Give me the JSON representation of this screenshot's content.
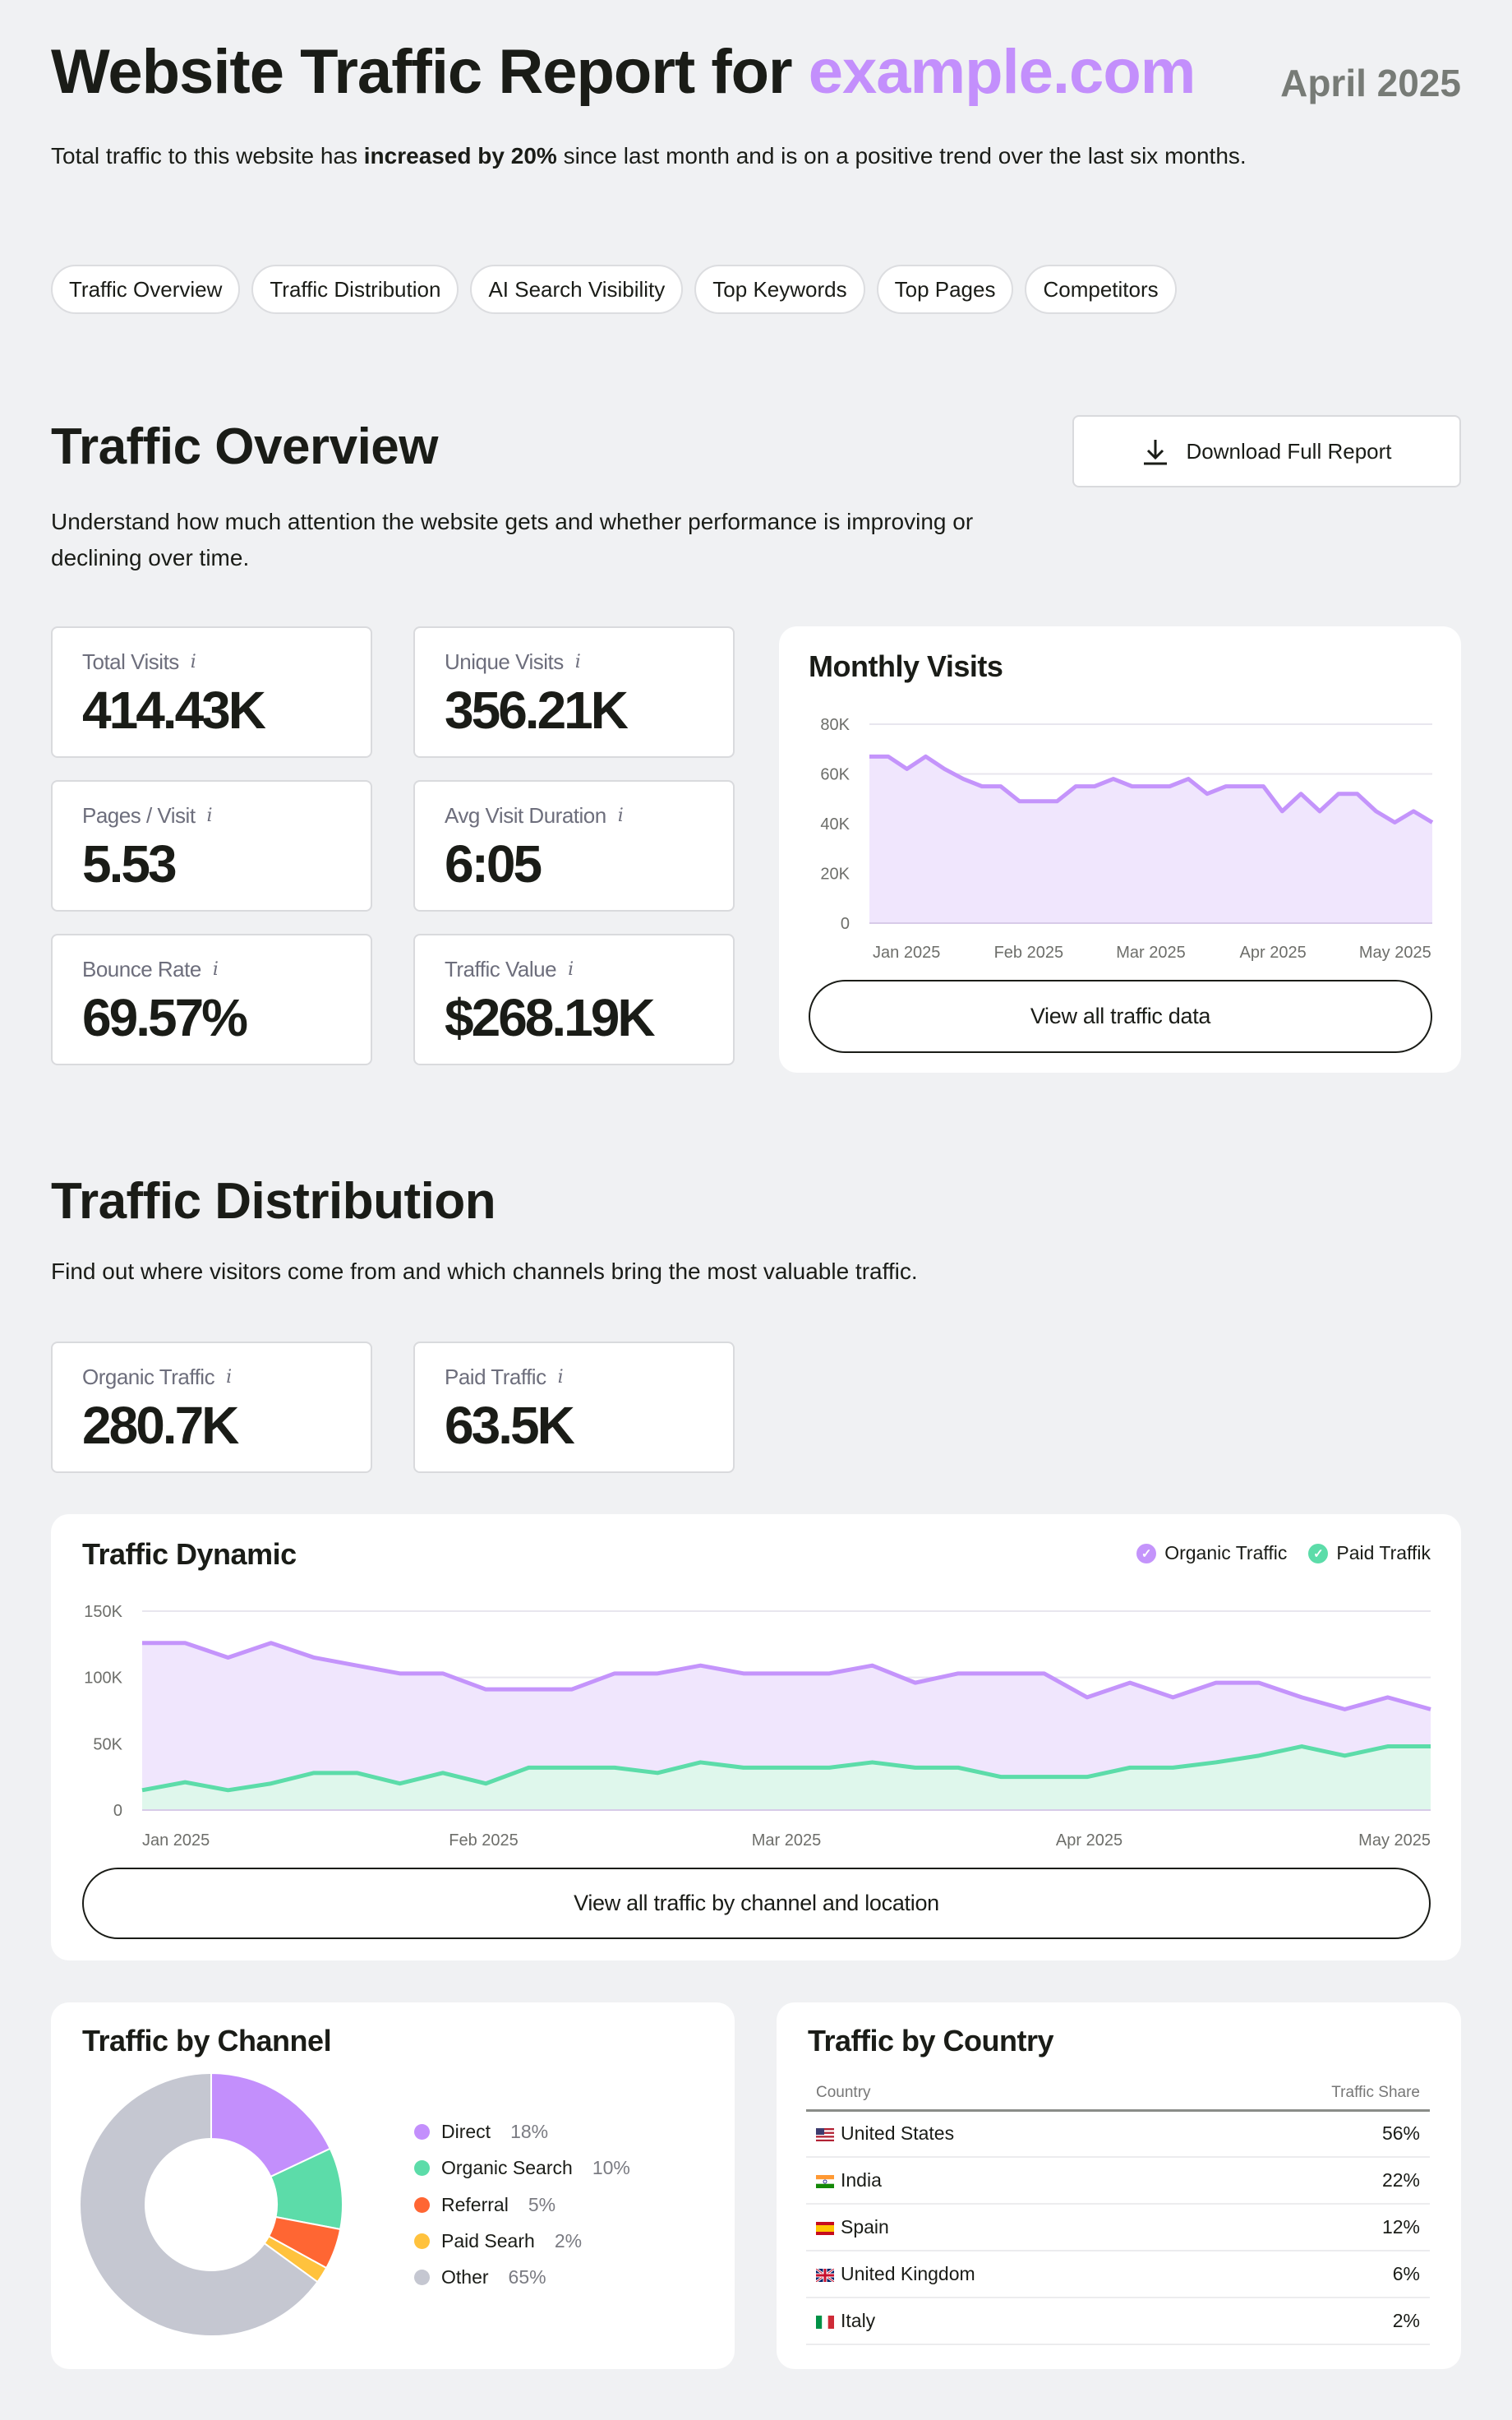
{
  "header": {
    "title_prefix": "Website Traffic Report for",
    "domain": "example.com",
    "date": "April 2025",
    "intro_before": "Total traffic to this website has ",
    "intro_bold": "increased by 20%",
    "intro_after": " since last month and is on a positive trend over the last six months.",
    "accent_color": "#c38ffc"
  },
  "nav_pills": [
    "Traffic Overview",
    "Traffic Distribution",
    "AI Search Visibility",
    "Top Keywords",
    "Top Pages",
    "Competitors"
  ],
  "overview": {
    "title": "Traffic Overview",
    "description": "Understand how much attention the website gets and whether performance is improving or declining over time.",
    "download_label": "Download Full Report",
    "download_icon": "download-icon",
    "info_glyph": "i",
    "kpis": [
      {
        "label": "Total Visits",
        "value": "414.43K"
      },
      {
        "label": "Unique Visits",
        "value": "356.21K"
      },
      {
        "label": "Pages / Visit",
        "value": "5.53"
      },
      {
        "label": "Avg Visit Duration",
        "value": "6:05"
      },
      {
        "label": "Bounce Rate",
        "value": "69.57%"
      },
      {
        "label": "Traffic Value",
        "value": "$268.19K"
      }
    ],
    "monthly_title": "Monthly Visits",
    "monthly_button": "View all traffic data"
  },
  "distribution": {
    "title": "Traffic Distribution",
    "description": "Find out where visitors come from and which channels bring the most valuable traffic.",
    "kpis": [
      {
        "label": "Organic Traffic",
        "value": "280.7K"
      },
      {
        "label": "Paid Traffic",
        "value": "63.5K"
      }
    ],
    "dynamic_title": "Traffic Dynamic",
    "dynamic_button": "View all traffic by channel and location",
    "channel_title": "Traffic by Channel",
    "country_title": "Traffic by Country"
  },
  "country_table": {
    "columns": [
      "Country",
      "Traffic Share"
    ],
    "rows": [
      {
        "country": "United States",
        "share": "56%",
        "flag": "us-flag-icon"
      },
      {
        "country": "India",
        "share": "22%",
        "flag": "india-flag-icon"
      },
      {
        "country": "Spain",
        "share": "12%",
        "flag": "spain-flag-icon"
      },
      {
        "country": "United Kingdom",
        "share": "6%",
        "flag": "uk-flag-icon"
      },
      {
        "country": "Italy",
        "share": "2%",
        "flag": "italy-flag-icon"
      }
    ]
  },
  "chart_data": [
    {
      "type": "area",
      "title": "Monthly Visits",
      "x_tick_labels": [
        "Jan 2025",
        "Feb 2025",
        "Mar 2025",
        "Apr 2025",
        "May 2025"
      ],
      "y_ticks": [
        "0",
        "20K",
        "40K",
        "60K",
        "80K"
      ],
      "ylim": [
        0,
        80000
      ],
      "grid": true,
      "series": [
        {
          "color": "#c494fb",
          "fill": "#f0e6fd",
          "values": [
            67000,
            67000,
            62000,
            67000,
            62000,
            58000,
            55000,
            55000,
            49000,
            49000,
            49000,
            55000,
            55000,
            58000,
            55000,
            55000,
            55000,
            58000,
            52000,
            55000,
            55000,
            55000,
            45000,
            52000,
            45000,
            52000,
            52000,
            45000,
            40500,
            45000,
            40500
          ]
        }
      ]
    },
    {
      "type": "area",
      "title": "Traffic Dynamic",
      "x_tick_labels": [
        "Jan 2025",
        "Feb 2025",
        "Mar 2025",
        "Apr 2025",
        "May 2025"
      ],
      "y_ticks": [
        "0",
        "50K",
        "100K",
        "150K"
      ],
      "ylim": [
        0,
        150000
      ],
      "grid": true,
      "legend": "top-right",
      "series": [
        {
          "name": "Organic Traffic",
          "color": "#c494fb",
          "fill": "#f0e6fd",
          "values": [
            126000,
            126000,
            115000,
            126000,
            115000,
            109000,
            103000,
            103000,
            91000,
            91000,
            91000,
            103000,
            103000,
            109000,
            103000,
            103000,
            103000,
            109000,
            96000,
            103000,
            103000,
            103000,
            85000,
            96000,
            85000,
            96000,
            96000,
            85000,
            76000,
            85000,
            76000
          ]
        },
        {
          "name": "Paid Traffik",
          "color": "#5cdca9",
          "fill": "#dff7ec",
          "values": [
            15000,
            21000,
            15000,
            20000,
            28000,
            28000,
            20000,
            28000,
            20000,
            32000,
            32000,
            32000,
            28000,
            36000,
            32000,
            32000,
            32000,
            36000,
            32000,
            32000,
            25000,
            25000,
            25000,
            32000,
            32000,
            36000,
            41000,
            48000,
            41000,
            48000,
            48000
          ]
        }
      ]
    },
    {
      "type": "pie",
      "title": "Traffic by Channel",
      "donut": true,
      "slices": [
        {
          "label": "Direct",
          "value": 18,
          "display": "18%",
          "color": "#c38ffc"
        },
        {
          "label": "Organic Search",
          "value": 10,
          "display": "10%",
          "color": "#5cdca9"
        },
        {
          "label": "Referral",
          "value": 5,
          "display": "5%",
          "color": "#ff6633"
        },
        {
          "label": "Paid Searh",
          "value": 2,
          "display": "2%",
          "color": "#ffc23d"
        },
        {
          "label": "Other",
          "value": 65,
          "display": "65%",
          "color": "#c5c7d1"
        }
      ]
    }
  ]
}
